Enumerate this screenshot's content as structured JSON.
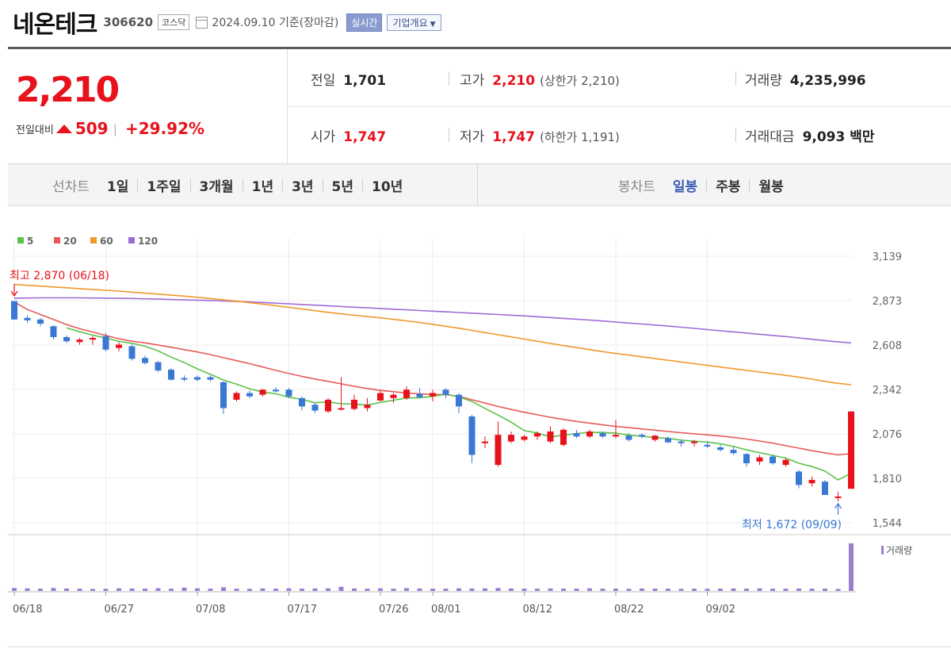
{
  "header": {
    "stock_name": "네온테크",
    "stock_code": "306620",
    "market": "코스닥",
    "date": "2024.09.10 기준(장마감)",
    "realtime_label": "실시간",
    "company_info_label": "기업개요"
  },
  "price": {
    "current": "2,210",
    "change_label": "전일대비",
    "change_amount": "509",
    "change_percent": "+29.92%",
    "direction": "up"
  },
  "stats": {
    "prev_close": {
      "label": "전일",
      "value": "1,701"
    },
    "high": {
      "label": "고가",
      "value": "2,210",
      "extra": "(상한가 2,210)"
    },
    "volume": {
      "label": "거래량",
      "value": "4,235,996"
    },
    "open": {
      "label": "시가",
      "value": "1,747"
    },
    "low": {
      "label": "저가",
      "value": "1,747",
      "extra": "(하한가 1,191)"
    },
    "trade_value": {
      "label": "거래대금",
      "value": "9,093 백만"
    }
  },
  "line_chart_tabs": {
    "label": "선차트",
    "items": [
      "1일",
      "1주일",
      "3개월",
      "1년",
      "3년",
      "5년",
      "10년"
    ]
  },
  "candle_chart_tabs": {
    "label": "봉차트",
    "items": [
      "일봉",
      "주봉",
      "월봉"
    ],
    "selected": "일봉"
  },
  "colors": {
    "up": "#e8121c",
    "down": "#3a78d6",
    "ma5": "#5cc24a",
    "ma20": "#e85a5a",
    "ma60": "#f0982a",
    "ma120": "#a06ad6",
    "volume": "#9c7dd0"
  },
  "chart_data": {
    "type": "candlestick",
    "legend": [
      {
        "name": "5",
        "color": "#5cc24a"
      },
      {
        "name": "20",
        "color": "#e85a5a"
      },
      {
        "name": "60",
        "color": "#f0982a"
      },
      {
        "name": "120",
        "color": "#a06ad6"
      }
    ],
    "y_ticks": [
      "3,139",
      "2,873",
      "2,608",
      "2,342",
      "2,076",
      "1,810",
      "1,544"
    ],
    "ylim": [
      1544,
      3139
    ],
    "x_ticks": [
      "06/18",
      "06/27",
      "07/08",
      "07/17",
      "07/26",
      "08/01",
      "08/12",
      "08/22",
      "09/02"
    ],
    "x_tick_index": [
      0,
      7,
      14,
      21,
      28,
      32,
      39,
      46,
      53
    ],
    "high_annotation": "최고 2,870 (06/18)",
    "low_annotation": "최저 1,672 (09/09)",
    "volume_label": "거래량",
    "candles": [
      [
        2870,
        2870,
        2760,
        2760
      ],
      [
        2770,
        2785,
        2740,
        2755
      ],
      [
        2760,
        2770,
        2720,
        2735
      ],
      [
        2720,
        2725,
        2640,
        2655
      ],
      [
        2655,
        2665,
        2620,
        2630
      ],
      [
        2625,
        2650,
        2610,
        2640
      ],
      [
        2640,
        2660,
        2610,
        2650
      ],
      [
        2660,
        2680,
        2570,
        2580
      ],
      [
        2590,
        2625,
        2570,
        2610
      ],
      [
        2600,
        2610,
        2515,
        2525
      ],
      [
        2530,
        2545,
        2490,
        2500
      ],
      [
        2505,
        2510,
        2445,
        2455
      ],
      [
        2460,
        2470,
        2395,
        2400
      ],
      [
        2410,
        2425,
        2390,
        2405
      ],
      [
        2415,
        2425,
        2390,
        2400
      ],
      [
        2415,
        2425,
        2390,
        2400
      ],
      [
        2385,
        2390,
        2195,
        2230
      ],
      [
        2280,
        2330,
        2270,
        2320
      ],
      [
        2320,
        2335,
        2290,
        2300
      ],
      [
        2310,
        2345,
        2300,
        2340
      ],
      [
        2340,
        2355,
        2325,
        2330
      ],
      [
        2340,
        2350,
        2290,
        2300
      ],
      [
        2290,
        2300,
        2215,
        2240
      ],
      [
        2250,
        2260,
        2200,
        2215
      ],
      [
        2210,
        2290,
        2200,
        2280
      ],
      [
        2225,
        2415,
        2215,
        2230
      ],
      [
        2225,
        2310,
        2215,
        2280
      ],
      [
        2230,
        2290,
        2210,
        2250
      ],
      [
        2275,
        2340,
        2270,
        2320
      ],
      [
        2290,
        2320,
        2260,
        2310
      ],
      [
        2290,
        2360,
        2280,
        2340
      ],
      [
        2315,
        2350,
        2290,
        2295
      ],
      [
        2300,
        2340,
        2270,
        2320
      ],
      [
        2340,
        2350,
        2290,
        2310
      ],
      [
        2310,
        2320,
        2200,
        2240
      ],
      [
        2180,
        2190,
        1900,
        1950
      ],
      [
        2020,
        2060,
        1990,
        2030
      ],
      [
        1890,
        2150,
        1880,
        2070
      ],
      [
        2030,
        2090,
        2020,
        2070
      ],
      [
        2040,
        2070,
        2030,
        2060
      ],
      [
        2060,
        2090,
        2040,
        2080
      ],
      [
        2030,
        2120,
        2020,
        2090
      ],
      [
        2010,
        2110,
        2000,
        2100
      ],
      [
        2080,
        2100,
        2050,
        2060
      ],
      [
        2060,
        2100,
        2050,
        2090
      ],
      [
        2080,
        2090,
        2050,
        2060
      ],
      [
        2060,
        2160,
        2050,
        2070
      ],
      [
        2065,
        2080,
        2030,
        2040
      ],
      [
        2070,
        2080,
        2050,
        2060
      ],
      [
        2040,
        2070,
        2030,
        2065
      ],
      [
        2050,
        2060,
        2020,
        2025
      ],
      [
        2030,
        2040,
        2000,
        2020
      ],
      [
        2020,
        2040,
        2000,
        2030
      ],
      [
        2010,
        2030,
        1990,
        2000
      ],
      [
        1995,
        2010,
        1970,
        1980
      ],
      [
        1980,
        2000,
        1950,
        1960
      ],
      [
        1955,
        1960,
        1880,
        1900
      ],
      [
        1910,
        1950,
        1890,
        1935
      ],
      [
        1940,
        1950,
        1890,
        1900
      ],
      [
        1890,
        1930,
        1880,
        1920
      ],
      [
        1850,
        1860,
        1750,
        1770
      ],
      [
        1780,
        1820,
        1760,
        1800
      ],
      [
        1790,
        1800,
        1710,
        1710
      ],
      [
        1701,
        1730,
        1672,
        1701
      ],
      [
        1747,
        2210,
        1747,
        2210
      ]
    ],
    "volume": [
      18,
      16,
      14,
      18,
      15,
      14,
      12,
      13,
      16,
      15,
      14,
      17,
      14,
      20,
      16,
      14,
      22,
      14,
      13,
      15,
      14,
      16,
      14,
      15,
      16,
      25,
      15,
      14,
      16,
      14,
      17,
      15,
      14,
      14,
      16,
      15,
      16,
      18,
      15,
      14,
      14,
      15,
      14,
      14,
      16,
      14,
      14,
      13,
      15,
      14,
      14,
      13,
      14,
      13,
      14,
      15,
      14,
      16,
      14,
      14,
      15,
      14,
      14,
      12,
      290
    ],
    "ma5": [
      null,
      null,
      null,
      null,
      2710,
      2687,
      2666,
      2650,
      2629,
      2618,
      2600,
      2572,
      2535,
      2502,
      2465,
      2432,
      2398,
      2373,
      2346,
      2326,
      2316,
      2295,
      2282,
      2262,
      2267,
      2256,
      2254,
      2248,
      2264,
      2277,
      2290,
      2292,
      2300,
      2313,
      2297,
      2270,
      2228,
      2188,
      2146,
      2095,
      2081,
      2057,
      2068,
      2078,
      2084,
      2084,
      2080,
      2069,
      2061,
      2055,
      2049,
      2038,
      2032,
      2027,
      2016,
      2000,
      1980,
      1963,
      1947,
      1931,
      1900,
      1880,
      1853,
      1800,
      1840
    ],
    "ma20": [
      2865,
      2820,
      2790,
      2760,
      2730,
      2705,
      2685,
      2665,
      2645,
      2630,
      2620,
      2608,
      2594,
      2580,
      2566,
      2550,
      2532,
      2514,
      2496,
      2476,
      2456,
      2437,
      2420,
      2404,
      2390,
      2375,
      2360,
      2347,
      2336,
      2328,
      2320,
      2315,
      2312,
      2310,
      2300,
      2280,
      2260,
      2240,
      2222,
      2205,
      2190,
      2175,
      2162,
      2150,
      2140,
      2130,
      2121,
      2113,
      2105,
      2098,
      2090,
      2083,
      2076,
      2070,
      2063,
      2055,
      2045,
      2033,
      2020,
      2005,
      1990,
      1975,
      1962,
      1950,
      1958
    ],
    "ma60": [
      2970,
      2965,
      2960,
      2955,
      2950,
      2945,
      2940,
      2935,
      2930,
      2924,
      2918,
      2912,
      2906,
      2900,
      2893,
      2886,
      2878,
      2870,
      2861,
      2852,
      2843,
      2833,
      2823,
      2813,
      2803,
      2794,
      2786,
      2778,
      2770,
      2761,
      2752,
      2742,
      2731,
      2720,
      2708,
      2695,
      2682,
      2669,
      2656,
      2643,
      2630,
      2617,
      2604,
      2592,
      2580,
      2568,
      2557,
      2547,
      2537,
      2526,
      2516,
      2506,
      2496,
      2486,
      2476,
      2466,
      2456,
      2446,
      2436,
      2426,
      2415,
      2403,
      2390,
      2378,
      2370
    ],
    "ma120": [
      2888,
      2889,
      2890,
      2890,
      2890,
      2890,
      2889,
      2888,
      2887,
      2886,
      2884,
      2882,
      2880,
      2878,
      2876,
      2874,
      2871,
      2868,
      2865,
      2862,
      2858,
      2854,
      2850,
      2846,
      2842,
      2838,
      2834,
      2830,
      2826,
      2822,
      2818,
      2814,
      2810,
      2806,
      2802,
      2798,
      2794,
      2790,
      2786,
      2782,
      2777,
      2772,
      2767,
      2762,
      2757,
      2751,
      2745,
      2739,
      2733,
      2727,
      2721,
      2714,
      2707,
      2700,
      2693,
      2686,
      2679,
      2672,
      2665,
      2658,
      2650,
      2642,
      2634,
      2626,
      2620
    ]
  }
}
